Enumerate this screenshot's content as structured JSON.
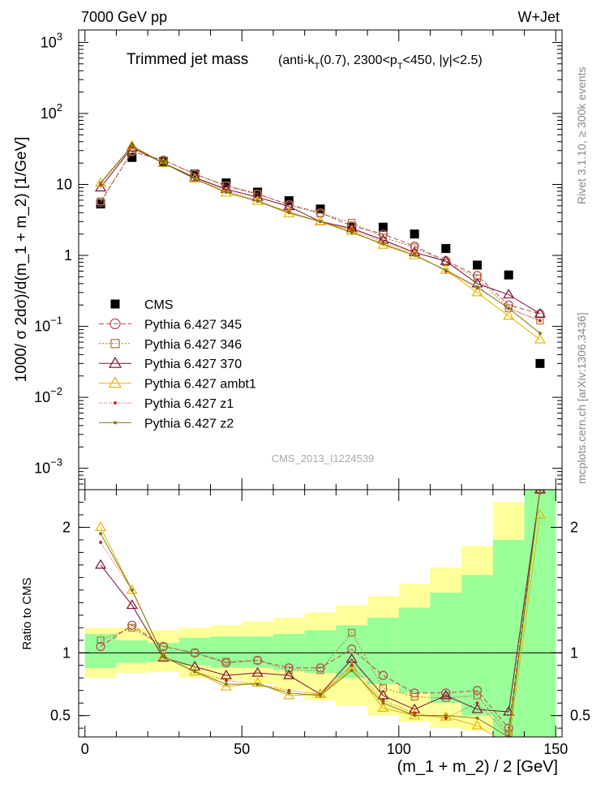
{
  "header": {
    "left": "7000 GeV pp",
    "right": "W+Jet"
  },
  "sidebar": {
    "rivet": "Rivet 3.1.10, ≥ 300k events",
    "mcplots": "mcplots.cern.ch [arXiv:1306.3436]"
  },
  "chart_data": [
    {
      "type": "line",
      "title": "Trimmed jet mass",
      "subtitle_parts": {
        "a": "(anti-k",
        "b": "T",
        "c": "(0.7), 2300<p",
        "d": "T",
        "e": "<450, |y|<2.5)"
      },
      "watermark": "CMS_2013_I1224539",
      "ylabel": "1000/ σ 2dσ)/d(m_1 + m_2) [1/GeV]",
      "yscale": "log",
      "ylim": [
        0.0005,
        1500
      ],
      "xlim": [
        -2,
        152
      ],
      "y_ticks": [
        {
          "value": 1000,
          "base": "10",
          "exp": "3"
        },
        {
          "value": 100,
          "base": "10",
          "exp": "2"
        },
        {
          "value": 10,
          "base": "10",
          "exp": ""
        },
        {
          "value": 1,
          "base": "1",
          "exp": ""
        },
        {
          "value": 0.1,
          "base": "10",
          "exp": "−1"
        },
        {
          "value": 0.01,
          "base": "10",
          "exp": "−2"
        },
        {
          "value": 0.001,
          "base": "10",
          "exp": "−3"
        }
      ],
      "x": [
        5,
        15,
        25,
        35,
        45,
        55,
        65,
        75,
        85,
        95,
        105,
        115,
        125,
        135,
        145
      ],
      "series": [
        {
          "name": "CMS",
          "label": "CMS",
          "color": "#000000",
          "marker": "square",
          "dash": "none",
          "values": [
            5.3,
            24,
            21,
            14,
            10.5,
            7.8,
            5.9,
            4.5,
            2.5,
            2.5,
            2.0,
            1.25,
            0.73,
            0.53,
            0.03
          ]
        },
        {
          "name": "p345",
          "label": "Pythia 6.427 345",
          "color": "#b5484d",
          "marker": "circle",
          "dash": "6,3",
          "values": [
            5.6,
            29,
            22,
            14,
            9.5,
            7.3,
            5.2,
            4.0,
            2.6,
            2.0,
            1.35,
            0.84,
            0.52,
            0.2,
            0.15
          ]
        },
        {
          "name": "p346",
          "label": "Pythia 6.427 346",
          "color": "#a8743e",
          "marker": "square-open",
          "dash": "2,2",
          "values": [
            5.8,
            29,
            22,
            14,
            9.7,
            7.4,
            5.1,
            3.9,
            2.9,
            1.8,
            1.3,
            0.8,
            0.48,
            0.18,
            0.12
          ]
        },
        {
          "name": "p370",
          "label": "Pythia 6.427 370",
          "color": "#7a1030",
          "marker": "triangle",
          "dash": "none",
          "values": [
            9.0,
            33,
            20,
            12.5,
            8.6,
            6.6,
            4.9,
            3.0,
            2.4,
            1.65,
            1.1,
            0.83,
            0.4,
            0.28,
            0.15
          ]
        },
        {
          "name": "ambt1",
          "label": "Pythia 6.427 ambt1",
          "color": "#e8b400",
          "marker": "triangle",
          "dash": "none",
          "values": [
            10.5,
            35,
            20,
            12,
            7.6,
            5.8,
            3.9,
            3.0,
            2.2,
            1.4,
            1.0,
            0.62,
            0.3,
            0.14,
            0.065
          ]
        },
        {
          "name": "z1",
          "label": "Pythia 6.427 z1",
          "color": "#d02a1e",
          "marker": "dot",
          "dash": "1,2",
          "values": [
            10.0,
            34,
            20,
            12,
            8.3,
            5.9,
            4.1,
            3.0,
            2.3,
            1.55,
            1.05,
            0.6,
            0.35,
            0.18,
            0.12
          ]
        },
        {
          "name": "z2",
          "label": "Pythia 6.427 z2",
          "color": "#7e7d10",
          "marker": "dot",
          "dash": "none",
          "values": [
            10.5,
            35,
            20,
            12,
            7.8,
            5.8,
            4.0,
            3.0,
            2.1,
            1.45,
            1.0,
            0.62,
            0.36,
            0.18,
            0.08
          ]
        }
      ]
    },
    {
      "type": "line",
      "ylabel": "Ratio to CMS",
      "xlabel": "(m_1 + m_2) / 2 [GeV]",
      "ylim": [
        0.33,
        2.3
      ],
      "xlim": [
        -2,
        152
      ],
      "y_ticks": [
        "0.5",
        "1",
        "2"
      ],
      "y_tick_values": [
        0.5,
        1,
        2
      ],
      "x_ticks": [
        "0",
        "50",
        "100",
        "150"
      ],
      "x_tick_values": [
        0,
        50,
        100,
        150
      ],
      "x": [
        5,
        15,
        25,
        35,
        45,
        55,
        65,
        75,
        85,
        95,
        105,
        115,
        125,
        135,
        145
      ],
      "band_green": [
        [
          0.88,
          1.15
        ],
        [
          0.92,
          1.1
        ],
        [
          0.93,
          1.08
        ],
        [
          0.9,
          1.12
        ],
        [
          0.88,
          1.13
        ],
        [
          0.88,
          1.13
        ],
        [
          0.86,
          1.15
        ],
        [
          0.84,
          1.18
        ],
        [
          0.8,
          1.22
        ],
        [
          0.75,
          1.28
        ],
        [
          0.68,
          1.36
        ],
        [
          0.6,
          1.48
        ],
        [
          0.5,
          1.62
        ],
        [
          0.33,
          1.9
        ],
        [
          0.33,
          2.3
        ]
      ],
      "band_yellow": [
        [
          0.8,
          1.2
        ],
        [
          0.84,
          1.2
        ],
        [
          0.85,
          1.18
        ],
        [
          0.8,
          1.2
        ],
        [
          0.78,
          1.22
        ],
        [
          0.75,
          1.25
        ],
        [
          0.7,
          1.28
        ],
        [
          0.62,
          1.32
        ],
        [
          0.58,
          1.38
        ],
        [
          0.5,
          1.45
        ],
        [
          0.45,
          1.55
        ],
        [
          0.4,
          1.68
        ],
        [
          0.38,
          1.85
        ],
        [
          0.33,
          2.2
        ],
        [
          0.33,
          2.3
        ]
      ],
      "series": [
        {
          "name": "p345",
          "color": "#b5484d",
          "marker": "circle",
          "dash": "6,3",
          "values": [
            1.05,
            1.22,
            1.05,
            1.0,
            0.92,
            0.94,
            0.88,
            0.88,
            1.03,
            0.82,
            0.68,
            0.68,
            0.7,
            0.4,
            2.3
          ]
        },
        {
          "name": "p346",
          "color": "#a8743e",
          "marker": "square-open",
          "dash": "2,2",
          "values": [
            1.1,
            1.2,
            1.05,
            1.0,
            0.93,
            0.94,
            0.86,
            0.86,
            1.16,
            0.72,
            0.65,
            0.64,
            0.66,
            0.36,
            2.3
          ]
        },
        {
          "name": "p370",
          "color": "#7a1030",
          "marker": "triangle",
          "dash": "none",
          "values": [
            1.7,
            1.38,
            0.96,
            0.89,
            0.82,
            0.84,
            0.82,
            0.67,
            0.95,
            0.66,
            0.55,
            0.66,
            0.55,
            0.53,
            2.3
          ]
        },
        {
          "name": "ambt1",
          "color": "#e8b400",
          "marker": "triangle",
          "dash": "none",
          "values": [
            2.0,
            1.5,
            0.97,
            0.85,
            0.73,
            0.76,
            0.66,
            0.67,
            0.88,
            0.56,
            0.5,
            0.49,
            0.42,
            0.27,
            2.1
          ]
        },
        {
          "name": "z1",
          "color": "#d02a1e",
          "marker": "dot",
          "dash": "1,2",
          "values": [
            1.88,
            1.5,
            0.97,
            0.85,
            0.78,
            0.75,
            0.7,
            0.67,
            0.9,
            0.62,
            0.52,
            0.48,
            0.6,
            0.34,
            2.3
          ]
        },
        {
          "name": "z2",
          "color": "#7e7d10",
          "marker": "dot",
          "dash": "none",
          "values": [
            1.95,
            1.5,
            0.97,
            0.85,
            0.75,
            0.75,
            0.68,
            0.66,
            0.86,
            0.6,
            0.5,
            0.5,
            0.48,
            0.33,
            2.3
          ]
        }
      ]
    }
  ]
}
